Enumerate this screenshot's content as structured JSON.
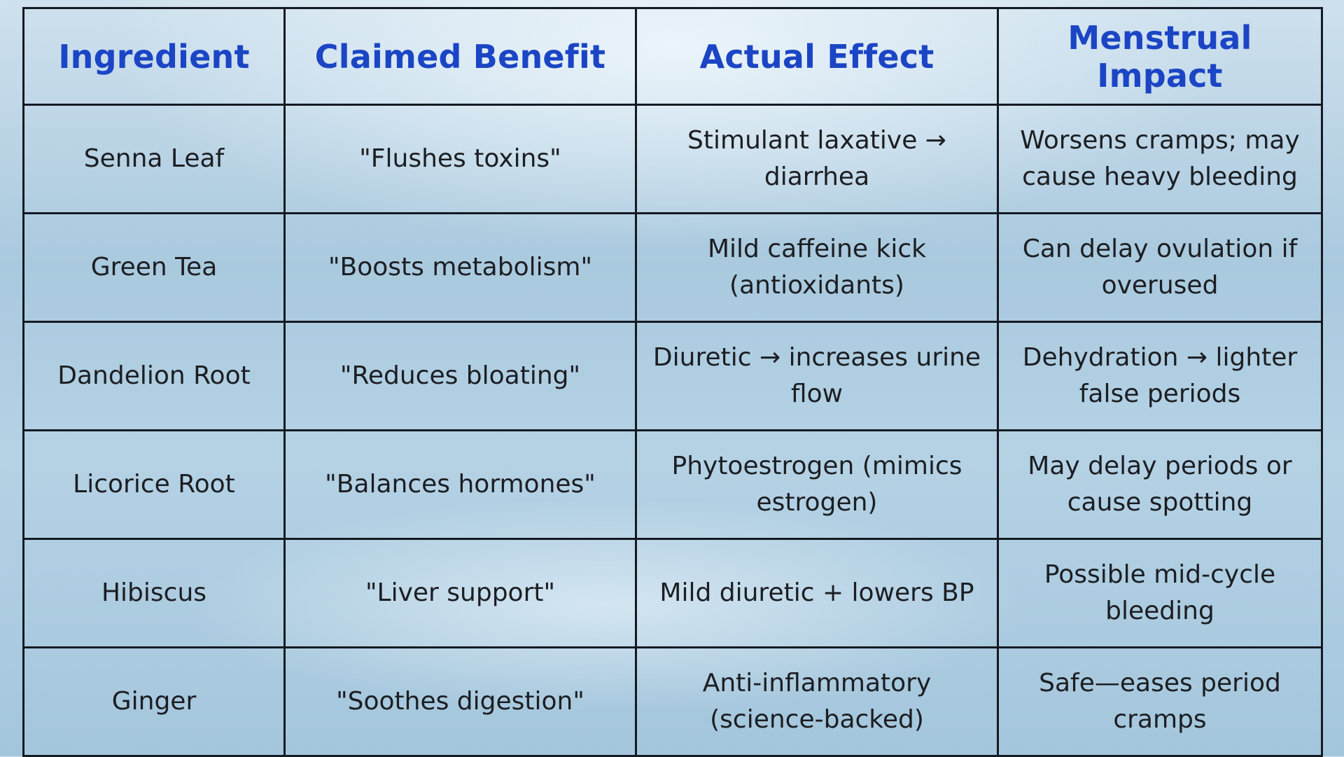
{
  "table": {
    "headers": [
      "Ingredient",
      "Claimed Benefit",
      "Actual Effect",
      "Menstrual Impact"
    ],
    "rows": [
      [
        "Senna Leaf",
        "\"Flushes toxins\"",
        "Stimulant laxative → diarrhea",
        "Worsens cramps; may cause heavy bleeding"
      ],
      [
        "Green Tea",
        "\"Boosts metabolism\"",
        "Mild caffeine kick (antioxidants)",
        "Can delay ovulation if overused"
      ],
      [
        "Dandelion Root",
        "\"Reduces bloating\"",
        "Diuretic → increases urine flow",
        "Dehydration → lighter false periods"
      ],
      [
        "Licorice Root",
        "\"Balances hormones\"",
        "Phytoestrogen (mimics estrogen)",
        "May delay periods or cause spotting"
      ],
      [
        "Hibiscus",
        "\"Liver support\"",
        "Mild diuretic + lowers BP",
        "Possible mid-cycle bleeding"
      ],
      [
        "Ginger",
        "\"Soothes digestion\"",
        "Anti-inflammatory (science-backed)",
        "Safe—eases period cramps"
      ]
    ]
  },
  "colors": {
    "header_text": "#1b45c4",
    "body_text": "#1c1e22",
    "border": "#141a22",
    "background_light": "#cfe1ee",
    "background_mid": "#a9c9de"
  }
}
